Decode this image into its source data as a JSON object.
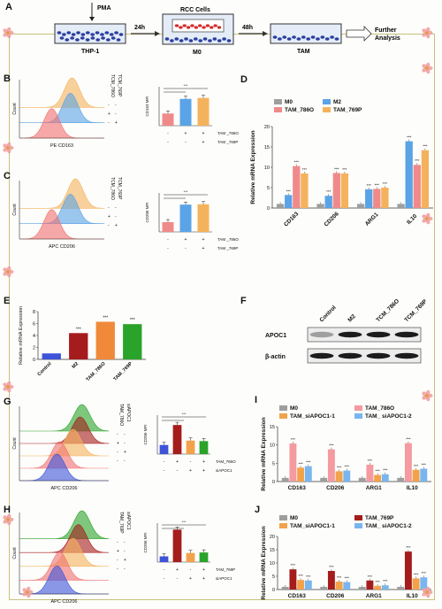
{
  "panels": {
    "A": "A",
    "B": "B",
    "C": "C",
    "D": "D",
    "E": "E",
    "F": "F",
    "G": "G",
    "H": "H",
    "I": "I",
    "J": "J"
  },
  "workflow": {
    "pma": "PMA",
    "thp1": "THP-1",
    "h24": "24h",
    "rcc": "RCC Cells",
    "m0": "M0",
    "h48": "48h",
    "tam": "TAM",
    "further": "Further",
    "analysis": "Analysis"
  },
  "flow": {
    "count": "Count",
    "pe_cd163": "PE CD163",
    "apc_cd206": "APC CD206",
    "cd163_mfi": "CD163 MFI",
    "cd206_mfi": "CD206 MFI",
    "tcm_786o": "TCM_786O",
    "tcm_769p": "TCM_769P",
    "tam_786o": "TAM_786O",
    "tam_769p": "TAM_769P",
    "siapoc1": "siAPOC1",
    "sig": "***",
    "ns": "ns"
  },
  "colors": {
    "m0": "#9e9e9e",
    "m2": "#5aa3e6",
    "tam786": "#f08a8a",
    "tam769": "#f5b25c",
    "darkred": "#a51c1c",
    "green": "#2aa32a",
    "blue": "#3d53d8",
    "orange": "#f2a24a",
    "lightblue": "#79b6ef",
    "pink": "#f49aa0"
  },
  "chart_D": {
    "type": "bar",
    "ylabel": "Relative mRNA Expression",
    "categories": [
      "CD163",
      "CD206",
      "ARG1",
      "IL10"
    ],
    "series": [
      {
        "name": "M0",
        "values": [
          1,
          1,
          1,
          1
        ]
      },
      {
        "name": "M2",
        "values": [
          3.2,
          3,
          4.6,
          16.4
        ]
      },
      {
        "name": "TAM_786O",
        "values": [
          10.3,
          8.6,
          4.7,
          10.6
        ]
      },
      {
        "name": "TAM_769P",
        "values": [
          8.5,
          8.5,
          5,
          14.2
        ]
      }
    ],
    "yticks": [
      "0",
      "5",
      "10",
      "15",
      "20"
    ],
    "ylim": [
      0,
      20
    ]
  },
  "chart_E": {
    "type": "bar",
    "ylabel": "Relative mRNA Expression",
    "categories": [
      "Control",
      "M2",
      "TAM_786O",
      "TAM_769P"
    ],
    "values": [
      1,
      4.4,
      6.3,
      5.9
    ],
    "yticks": [
      "0",
      "2",
      "4",
      "6",
      "8"
    ],
    "ylim": [
      0,
      8
    ]
  },
  "blot_F": {
    "lanes": [
      "Control",
      "M2",
      "TCM_786O",
      "TCM_769P"
    ],
    "rows": [
      "APOC1",
      "β-actin"
    ]
  },
  "chart_I": {
    "type": "bar",
    "ylabel": "Relative mRNA Expression",
    "categories": [
      "CD163",
      "CD206",
      "ARG1",
      "IL10"
    ],
    "series": [
      {
        "name": "M0",
        "values": [
          1,
          1,
          1,
          1
        ]
      },
      {
        "name": "TAM_786O",
        "values": [
          10.4,
          8.8,
          4.6,
          10.5
        ]
      },
      {
        "name": "TAM_siAPOC1-1",
        "values": [
          3.8,
          2.8,
          1.8,
          3.2
        ]
      },
      {
        "name": "TAM_ siAPOC1-2",
        "values": [
          4.2,
          3,
          2,
          3.5
        ]
      }
    ],
    "yticks": [
      "0",
      "5",
      "10",
      "15"
    ],
    "ylim": [
      0,
      15
    ]
  },
  "chart_J": {
    "type": "bar",
    "ylabel": "Relative mRNA Expression",
    "categories": [
      "CD163",
      "CD206",
      "ARG1",
      "IL10"
    ],
    "series": [
      {
        "name": "M0",
        "values": [
          1,
          1,
          1,
          1
        ]
      },
      {
        "name": "TAM_769P",
        "values": [
          7.6,
          7,
          3.4,
          14.3
        ]
      },
      {
        "name": "TAM_siAPOC1-1",
        "values": [
          3.6,
          3,
          1.4,
          4.2
        ]
      },
      {
        "name": "TAM_ siAPOC1-2",
        "values": [
          3.4,
          2.8,
          1.6,
          4.6
        ]
      }
    ],
    "yticks": [
      "0",
      "5",
      "10",
      "15",
      "20"
    ],
    "ylim": [
      0,
      20
    ]
  },
  "mfi_B": {
    "values": [
      78,
      172,
      178
    ],
    "ylim": [
      0,
      250
    ]
  },
  "mfi_C": {
    "values": [
      125,
      350,
      355
    ],
    "ylim": [
      0,
      500
    ]
  },
  "mfi_G": {
    "values": [
      35,
      112,
      52,
      50
    ],
    "ylim": [
      0,
      150
    ]
  },
  "mfi_H": {
    "values": [
      22,
      125,
      35,
      37
    ],
    "ylim": [
      0,
      150
    ]
  },
  "mfi_rows_BC": {
    "r1": "TAM _786O",
    "r2": "TAM _769P",
    "plus": "+",
    "minus": "-"
  },
  "mfi_rows_G": {
    "r1": "TAM_786O",
    "r2": "siAPOC1"
  },
  "mfi_rows_H": {
    "r1": "TAM_769P",
    "r2": "siAPOC1"
  }
}
